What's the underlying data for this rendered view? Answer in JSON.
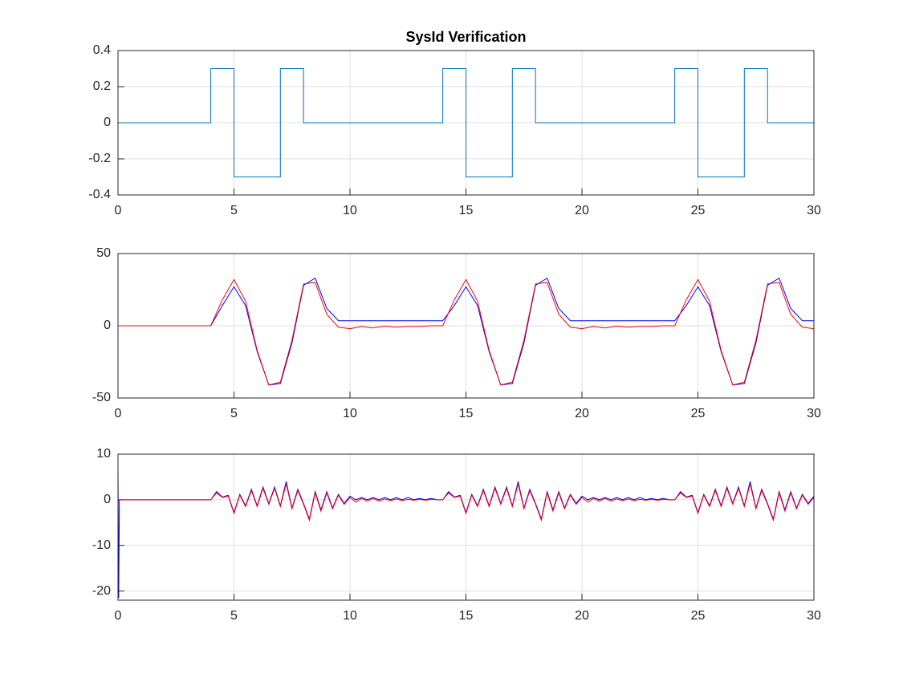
{
  "chart_data": [
    {
      "type": "line",
      "title": "SysId Verification",
      "x": [
        0,
        4,
        4,
        5,
        5,
        7,
        7,
        8,
        8,
        14,
        14,
        15,
        15,
        17,
        17,
        18,
        18,
        24,
        24,
        25,
        25,
        27,
        27,
        28,
        28,
        30
      ],
      "series": [
        {
          "color": "#0072bd",
          "values": [
            0,
            0,
            0.3,
            0.3,
            -0.3,
            -0.3,
            0.3,
            0.3,
            0,
            0,
            0.3,
            0.3,
            -0.3,
            -0.3,
            0.3,
            0.3,
            0,
            0,
            0.3,
            0.3,
            -0.3,
            -0.3,
            0.3,
            0.3,
            0,
            0
          ]
        }
      ],
      "xlim": [
        0,
        30
      ],
      "xticks": [
        0,
        5,
        10,
        15,
        20,
        25,
        30
      ],
      "ylim": [
        -0.4,
        0.4
      ],
      "yticks": [
        -0.4,
        -0.2,
        0,
        0.2,
        0.4
      ],
      "grid": true
    },
    {
      "type": "line",
      "x": [
        0,
        0.5,
        1,
        1.5,
        2,
        2.5,
        3,
        3.5,
        4,
        4.5,
        5,
        5.5,
        6,
        6.5,
        7,
        7.5,
        8,
        8.5,
        9,
        9.5,
        10,
        10.5,
        11,
        11.5,
        12,
        12.5,
        13,
        13.5,
        14,
        14.5,
        15,
        15.5,
        16,
        16.5,
        17,
        17.5,
        18,
        18.5,
        19,
        19.5,
        20,
        20.5,
        21,
        21.5,
        22,
        22.5,
        23,
        23.5,
        24,
        24.5,
        25,
        25.5,
        26,
        26.5,
        27,
        27.5,
        28,
        28.5,
        29,
        29.5,
        30
      ],
      "series": [
        {
          "color": "#0000ff",
          "values": [
            0,
            0,
            0,
            0,
            0,
            0,
            0,
            0,
            0,
            14,
            27,
            14,
            -18,
            -41,
            -40,
            -12,
            28,
            33,
            12,
            3.5,
            3.5,
            3.5,
            3.5,
            3.5,
            3.5,
            3.5,
            3.5,
            3.5,
            3.5,
            14,
            27,
            14,
            -18,
            -41,
            -40,
            -12,
            28,
            33,
            12,
            3.5,
            3.5,
            3.5,
            3.5,
            3.5,
            3.5,
            3.5,
            3.5,
            3.5,
            3.5,
            14,
            27,
            14,
            -18,
            -41,
            -40,
            -12,
            28,
            33,
            12,
            3.5,
            3.5
          ]
        },
        {
          "color": "#ff0000",
          "values": [
            0,
            0,
            0,
            0,
            0,
            0,
            0,
            0,
            0,
            18,
            32,
            17,
            -17,
            -41,
            -39,
            -10,
            29,
            30,
            8,
            -1,
            -2,
            -0.5,
            -1.5,
            -0.3,
            -1,
            -0.5,
            -0.5,
            0,
            0,
            18,
            32,
            17,
            -17,
            -41,
            -39,
            -10,
            29,
            30,
            8,
            -1,
            -2,
            -0.5,
            -1.5,
            -0.3,
            -1,
            -0.5,
            -0.5,
            0,
            0,
            18,
            32,
            17,
            -17,
            -41,
            -39,
            -10,
            29,
            30,
            8,
            -1,
            -2
          ]
        }
      ],
      "xlim": [
        0,
        30
      ],
      "xticks": [
        0,
        5,
        10,
        15,
        20,
        25,
        30
      ],
      "ylim": [
        -50,
        50
      ],
      "yticks": [
        -50,
        0,
        50
      ],
      "grid": true
    },
    {
      "type": "line",
      "x": [
        0,
        0.03,
        0.06,
        0.25,
        0.5,
        0.75,
        1,
        1.25,
        1.5,
        1.75,
        2,
        2.25,
        2.5,
        2.75,
        3,
        3.25,
        3.5,
        3.75,
        4,
        4.25,
        4.5,
        4.75,
        5,
        5.25,
        5.5,
        5.75,
        6,
        6.25,
        6.5,
        6.75,
        7,
        7.25,
        7.5,
        7.75,
        8,
        8.25,
        8.5,
        8.75,
        9,
        9.25,
        9.5,
        9.75,
        10,
        10.25,
        10.5,
        10.75,
        11,
        11.25,
        11.5,
        11.75,
        12,
        12.25,
        12.5,
        12.75,
        13,
        13.25,
        13.5,
        13.75,
        14,
        14.25,
        14.5,
        14.75,
        15,
        15.25,
        15.5,
        15.75,
        16,
        16.25,
        16.5,
        16.75,
        17,
        17.25,
        17.5,
        17.75,
        18,
        18.25,
        18.5,
        18.75,
        19,
        19.25,
        19.5,
        19.75,
        20,
        20.25,
        20.5,
        20.75,
        21,
        21.25,
        21.5,
        21.75,
        22,
        22.25,
        22.5,
        22.75,
        23,
        23.25,
        23.5,
        23.75,
        24,
        24.25,
        24.5,
        24.75,
        25,
        25.25,
        25.5,
        25.75,
        26,
        26.25,
        26.5,
        26.75,
        27,
        27.25,
        27.5,
        27.75,
        28,
        28.25,
        28.5,
        28.75,
        29,
        29.25,
        29.5,
        29.75,
        30
      ],
      "series": [
        {
          "color": "#0000ff",
          "values": [
            7,
            -21.5,
            0,
            0,
            0,
            0,
            0,
            0,
            0,
            0,
            0,
            0,
            0,
            0,
            0,
            0,
            0,
            0,
            0,
            1.8,
            0.6,
            1,
            -2.8,
            1.2,
            -1.3,
            2.3,
            -1.3,
            2.8,
            -0.8,
            2.8,
            -1.3,
            4,
            -1.8,
            2.3,
            -0.8,
            -4.2,
            1.8,
            -2.2,
            1.8,
            -1.8,
            1.2,
            -0.8,
            0.8,
            0,
            0.5,
            0,
            0.5,
            0,
            0.5,
            0,
            0.5,
            0,
            0.5,
            0,
            0.3,
            0,
            0.3,
            0,
            0,
            1.8,
            0.6,
            1,
            -2.8,
            1.2,
            -1.3,
            2.3,
            -1.3,
            2.8,
            -0.8,
            2.8,
            -1.3,
            4,
            -1.8,
            2.3,
            -0.8,
            -4.2,
            1.8,
            -2.2,
            1.8,
            -1.8,
            1.2,
            -0.8,
            0.8,
            0,
            0.5,
            0,
            0.5,
            0,
            0.5,
            0,
            0.5,
            0,
            0.5,
            0,
            0.3,
            0,
            0.3,
            0,
            0,
            1.8,
            0.6,
            1,
            -2.8,
            1.2,
            -1.3,
            2.3,
            -1.3,
            2.8,
            -0.8,
            2.8,
            -1.3,
            4,
            -1.8,
            2.3,
            -0.8,
            -4.2,
            1.8,
            -2.2,
            1.8,
            -1.8,
            1.2,
            -0.8,
            0.8
          ]
        },
        {
          "color": "#ff0000",
          "values": [
            0,
            0,
            0,
            0,
            0,
            0,
            0,
            0,
            0,
            0,
            0,
            0,
            0,
            0,
            0,
            0,
            0,
            0,
            0,
            1.5,
            0.5,
            0.8,
            -3,
            1,
            -1.5,
            2,
            -1.5,
            2.5,
            -1,
            2.5,
            -1.5,
            3.5,
            -2,
            2,
            -1,
            -4.5,
            1.5,
            -2.5,
            1.5,
            -2,
            1,
            -1,
            0.5,
            -0.5,
            0.3,
            -0.3,
            0.3,
            -0.3,
            0.2,
            -0.2,
            0.2,
            -0.2,
            0.1,
            -0.1,
            0.1,
            -0.1,
            0.1,
            0,
            0,
            1.5,
            0.5,
            0.8,
            -3,
            1,
            -1.5,
            2,
            -1.5,
            2.5,
            -1,
            2.5,
            -1.5,
            3.5,
            -2,
            2,
            -1,
            -4.5,
            1.5,
            -2.5,
            1.5,
            -2,
            1,
            -1,
            0.5,
            -0.5,
            0.3,
            -0.3,
            0.3,
            -0.3,
            0.2,
            -0.2,
            0.2,
            -0.2,
            0.1,
            -0.1,
            0.1,
            -0.1,
            0.1,
            0,
            0,
            1.5,
            0.5,
            0.8,
            -3,
            1,
            -1.5,
            2,
            -1.5,
            2.5,
            -1,
            2.5,
            -1.5,
            3.5,
            -2,
            2,
            -1,
            -4.5,
            1.5,
            -2.5,
            1.5,
            -2,
            1,
            -1,
            0.5
          ]
        }
      ],
      "xlim": [
        0,
        30
      ],
      "xticks": [
        0,
        5,
        10,
        15,
        20,
        25,
        30
      ],
      "ylim": [
        -22,
        10
      ],
      "yticks": [
        -20,
        -10,
        0,
        10
      ],
      "grid": true
    }
  ]
}
